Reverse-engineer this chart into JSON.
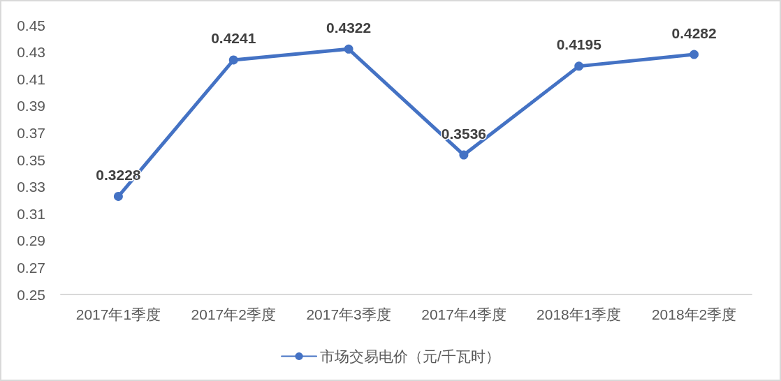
{
  "chart_data": {
    "type": "line",
    "categories": [
      "2017年1季度",
      "2017年2季度",
      "2017年3季度",
      "2017年4季度",
      "2018年1季度",
      "2018年2季度"
    ],
    "series": [
      {
        "name": "市场交易电价（元/千瓦时）",
        "color": "#4472c4",
        "values": [
          0.3228,
          0.4241,
          0.4322,
          0.3536,
          0.4195,
          0.4282
        ]
      }
    ],
    "ylim": [
      0.25,
      0.45
    ],
    "yticks": [
      0.25,
      0.27,
      0.29,
      0.31,
      0.33,
      0.35,
      0.37,
      0.39,
      0.41,
      0.43,
      0.45
    ],
    "grid": false,
    "legend": "bottom",
    "marker": "circle",
    "line_style": "solid",
    "data_labels": true
  }
}
